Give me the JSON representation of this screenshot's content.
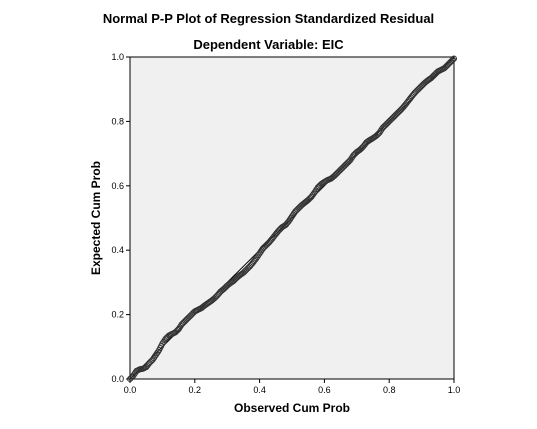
{
  "chart_data": {
    "type": "scatter",
    "title": "Normal P-P Plot of Regression Standardized Residual",
    "subtitle": "Dependent Variable: EIC",
    "xlabel": "Observed Cum Prob",
    "ylabel": "Expected Cum Prob",
    "xlim": [
      0.0,
      1.0
    ],
    "ylim": [
      0.0,
      1.0
    ],
    "xticks": [
      "0.0",
      "0.2",
      "0.4",
      "0.6",
      "0.8",
      "1.0"
    ],
    "yticks": [
      "0.0",
      "0.2",
      "0.4",
      "0.6",
      "0.8",
      "1.0"
    ],
    "grid": false,
    "reference_line": [
      [
        0.0,
        0.0
      ],
      [
        1.0,
        1.0
      ]
    ],
    "series": [
      {
        "points_xy": [
          [
            0.0,
            0.0
          ],
          [
            0.01,
            0.01
          ],
          [
            0.02,
            0.025
          ],
          [
            0.03,
            0.03
          ],
          [
            0.04,
            0.032
          ],
          [
            0.05,
            0.037
          ],
          [
            0.06,
            0.05
          ],
          [
            0.07,
            0.06
          ],
          [
            0.08,
            0.075
          ],
          [
            0.09,
            0.09
          ],
          [
            0.1,
            0.11
          ],
          [
            0.11,
            0.125
          ],
          [
            0.12,
            0.135
          ],
          [
            0.13,
            0.14
          ],
          [
            0.14,
            0.145
          ],
          [
            0.15,
            0.155
          ],
          [
            0.16,
            0.17
          ],
          [
            0.17,
            0.18
          ],
          [
            0.18,
            0.19
          ],
          [
            0.19,
            0.2
          ],
          [
            0.2,
            0.21
          ],
          [
            0.21,
            0.215
          ],
          [
            0.22,
            0.22
          ],
          [
            0.23,
            0.228
          ],
          [
            0.24,
            0.235
          ],
          [
            0.25,
            0.242
          ],
          [
            0.26,
            0.25
          ],
          [
            0.27,
            0.26
          ],
          [
            0.28,
            0.272
          ],
          [
            0.29,
            0.28
          ],
          [
            0.3,
            0.29
          ],
          [
            0.31,
            0.298
          ],
          [
            0.32,
            0.305
          ],
          [
            0.33,
            0.315
          ],
          [
            0.34,
            0.323
          ],
          [
            0.35,
            0.33
          ],
          [
            0.36,
            0.34
          ],
          [
            0.37,
            0.35
          ],
          [
            0.38,
            0.362
          ],
          [
            0.39,
            0.375
          ],
          [
            0.4,
            0.39
          ],
          [
            0.41,
            0.405
          ],
          [
            0.42,
            0.415
          ],
          [
            0.43,
            0.425
          ],
          [
            0.44,
            0.437
          ],
          [
            0.45,
            0.45
          ],
          [
            0.46,
            0.462
          ],
          [
            0.47,
            0.472
          ],
          [
            0.48,
            0.478
          ],
          [
            0.49,
            0.49
          ],
          [
            0.5,
            0.505
          ],
          [
            0.51,
            0.52
          ],
          [
            0.52,
            0.53
          ],
          [
            0.53,
            0.54
          ],
          [
            0.54,
            0.548
          ],
          [
            0.55,
            0.556
          ],
          [
            0.56,
            0.566
          ],
          [
            0.57,
            0.58
          ],
          [
            0.58,
            0.595
          ],
          [
            0.59,
            0.605
          ],
          [
            0.6,
            0.612
          ],
          [
            0.61,
            0.618
          ],
          [
            0.62,
            0.622
          ],
          [
            0.63,
            0.63
          ],
          [
            0.64,
            0.64
          ],
          [
            0.65,
            0.65
          ],
          [
            0.66,
            0.66
          ],
          [
            0.67,
            0.67
          ],
          [
            0.68,
            0.68
          ],
          [
            0.69,
            0.695
          ],
          [
            0.7,
            0.705
          ],
          [
            0.71,
            0.712
          ],
          [
            0.72,
            0.722
          ],
          [
            0.73,
            0.735
          ],
          [
            0.74,
            0.742
          ],
          [
            0.75,
            0.748
          ],
          [
            0.76,
            0.755
          ],
          [
            0.77,
            0.765
          ],
          [
            0.78,
            0.78
          ],
          [
            0.79,
            0.79
          ],
          [
            0.8,
            0.8
          ],
          [
            0.81,
            0.81
          ],
          [
            0.82,
            0.82
          ],
          [
            0.83,
            0.83
          ],
          [
            0.84,
            0.84
          ],
          [
            0.85,
            0.852
          ],
          [
            0.86,
            0.865
          ],
          [
            0.87,
            0.878
          ],
          [
            0.88,
            0.89
          ],
          [
            0.89,
            0.9
          ],
          [
            0.9,
            0.91
          ],
          [
            0.91,
            0.92
          ],
          [
            0.92,
            0.928
          ],
          [
            0.93,
            0.935
          ],
          [
            0.94,
            0.945
          ],
          [
            0.95,
            0.955
          ],
          [
            0.96,
            0.96
          ],
          [
            0.97,
            0.965
          ],
          [
            0.98,
            0.975
          ],
          [
            0.99,
            0.985
          ],
          [
            1.0,
            0.995
          ]
        ]
      }
    ]
  }
}
